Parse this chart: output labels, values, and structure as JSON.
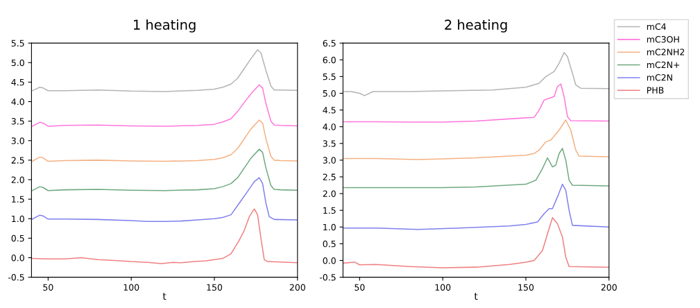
{
  "chart_data": [
    {
      "type": "line",
      "title": "1 heating",
      "xlabel": "t",
      "xlim": [
        40,
        200
      ],
      "xticks": [
        50,
        100,
        150,
        200
      ],
      "ylim": [
        -0.5,
        5.5
      ],
      "yticks": [
        -0.5,
        {
          "value": 0,
          "label": "0.0"
        },
        0.5,
        {
          "value": 1,
          "label": "1.0"
        },
        1.5,
        {
          "value": 2,
          "label": "2.0"
        },
        2.5,
        {
          "value": 3,
          "label": "3.0"
        },
        3.5,
        {
          "value": 4,
          "label": "4.0"
        },
        4.5,
        {
          "value": 5,
          "label": "5.0"
        },
        5.5
      ],
      "grid": false,
      "series": [
        {
          "color": "#b4b4b4",
          "x": [
            40,
            45,
            47,
            50,
            60,
            80,
            100,
            120,
            140,
            150,
            155,
            160,
            164,
            168,
            172,
            176,
            178,
            181,
            184,
            186,
            190,
            200
          ],
          "values": [
            4.27,
            4.37,
            4.35,
            4.28,
            4.28,
            4.3,
            4.27,
            4.26,
            4.29,
            4.32,
            4.37,
            4.45,
            4.6,
            4.85,
            5.1,
            5.33,
            5.25,
            4.8,
            4.4,
            4.3,
            4.3,
            4.29
          ]
        },
        {
          "color": "#ff77dd",
          "x": [
            40,
            45,
            47,
            50,
            60,
            80,
            100,
            120,
            140,
            150,
            155,
            160,
            164,
            168,
            172,
            177,
            179,
            181,
            184,
            186,
            190,
            200
          ],
          "values": [
            3.36,
            3.47,
            3.45,
            3.37,
            3.39,
            3.4,
            3.38,
            3.37,
            3.39,
            3.42,
            3.48,
            3.56,
            3.75,
            3.98,
            4.2,
            4.43,
            4.35,
            3.95,
            3.5,
            3.4,
            3.39,
            3.38
          ]
        },
        {
          "color": "#f4b183",
          "x": [
            40,
            45,
            47,
            50,
            60,
            80,
            100,
            120,
            140,
            150,
            155,
            160,
            164,
            168,
            172,
            177,
            179,
            181,
            184,
            186,
            190,
            200
          ],
          "values": [
            2.46,
            2.58,
            2.56,
            2.47,
            2.49,
            2.5,
            2.48,
            2.47,
            2.49,
            2.52,
            2.56,
            2.64,
            2.8,
            3.05,
            3.3,
            3.53,
            3.45,
            3.05,
            2.6,
            2.5,
            2.49,
            2.48
          ]
        },
        {
          "color": "#70a980",
          "x": [
            40,
            45,
            47,
            50,
            60,
            80,
            100,
            120,
            140,
            150,
            155,
            160,
            164,
            168,
            172,
            177,
            179,
            181,
            184,
            186,
            190,
            200
          ],
          "values": [
            1.71,
            1.82,
            1.8,
            1.72,
            1.74,
            1.75,
            1.73,
            1.72,
            1.74,
            1.77,
            1.82,
            1.9,
            2.05,
            2.3,
            2.55,
            2.78,
            2.7,
            2.3,
            1.85,
            1.75,
            1.74,
            1.73
          ]
        },
        {
          "color": "#8080ee",
          "x": [
            40,
            45,
            47,
            50,
            60,
            80,
            100,
            110,
            120,
            130,
            140,
            150,
            155,
            160,
            165,
            170,
            174,
            177,
            179,
            181,
            183,
            186,
            200
          ],
          "values": [
            0.98,
            1.09,
            1.07,
            0.99,
            0.99,
            0.98,
            0.95,
            0.93,
            0.93,
            0.94,
            0.97,
            1.0,
            1.03,
            1.1,
            1.4,
            1.7,
            1.95,
            2.05,
            1.9,
            1.4,
            1.05,
            0.98,
            0.97
          ]
        },
        {
          "color": "#f08080",
          "x": [
            40,
            50,
            60,
            70,
            80,
            90,
            100,
            110,
            118,
            125,
            130,
            138,
            145,
            150,
            155,
            160,
            165,
            168,
            171,
            174,
            176,
            178,
            180,
            182,
            190,
            200
          ],
          "values": [
            -0.02,
            -0.03,
            -0.03,
            0.0,
            -0.05,
            -0.07,
            -0.1,
            -0.12,
            -0.15,
            -0.12,
            -0.13,
            -0.1,
            -0.08,
            -0.05,
            -0.02,
            0.1,
            0.45,
            0.7,
            1.05,
            1.25,
            1.1,
            0.5,
            -0.05,
            -0.1,
            -0.11,
            -0.13
          ]
        }
      ]
    },
    {
      "type": "line",
      "title": "2 heating",
      "xlabel": "t",
      "xlim": [
        40,
        200
      ],
      "xticks": [
        50,
        100,
        150,
        200
      ],
      "ylim": [
        -0.5,
        6.5
      ],
      "yticks": [
        -0.5,
        {
          "value": 0,
          "label": "0.0"
        },
        0.5,
        {
          "value": 1,
          "label": "1.0"
        },
        1.5,
        {
          "value": 2,
          "label": "2.0"
        },
        2.5,
        {
          "value": 3,
          "label": "3.0"
        },
        3.5,
        {
          "value": 4,
          "label": "4.0"
        },
        4.5,
        {
          "value": 5,
          "label": "5.0"
        },
        5.5,
        {
          "value": 6,
          "label": "6.0"
        },
        6.5
      ],
      "grid": false,
      "legend": "right",
      "series": [
        {
          "name": "mC4",
          "color": "#b4b4b4",
          "x": [
            40,
            45,
            50,
            53,
            58,
            70,
            80,
            100,
            130,
            150,
            158,
            162,
            167,
            170,
            173,
            175,
            178,
            180,
            183,
            200
          ],
          "values": [
            5.05,
            5.05,
            5.0,
            4.93,
            5.05,
            5.05,
            5.05,
            5.07,
            5.1,
            5.18,
            5.3,
            5.5,
            5.65,
            5.9,
            6.22,
            6.1,
            5.6,
            5.25,
            5.15,
            5.14
          ]
        },
        {
          "name": "mC3OH",
          "color": "#ff77dd",
          "x": [
            40,
            60,
            80,
            100,
            120,
            145,
            155,
            158,
            161,
            164,
            167,
            169,
            171,
            173,
            175,
            177,
            200
          ],
          "values": [
            4.15,
            4.15,
            4.14,
            4.14,
            4.17,
            4.25,
            4.28,
            4.5,
            4.8,
            4.85,
            4.9,
            5.2,
            5.28,
            4.9,
            4.3,
            4.18,
            4.17
          ]
        },
        {
          "name": "mC2NH2",
          "color": "#f4b183",
          "x": [
            40,
            60,
            85,
            100,
            120,
            150,
            155,
            158,
            162,
            165,
            170,
            174,
            177,
            180,
            182,
            200
          ],
          "values": [
            3.05,
            3.05,
            3.02,
            3.04,
            3.07,
            3.15,
            3.2,
            3.3,
            3.55,
            3.6,
            3.9,
            4.2,
            3.9,
            3.3,
            3.12,
            3.1
          ]
        },
        {
          "name": "mC2N+",
          "color": "#70a980",
          "x": [
            40,
            60,
            80,
            100,
            120,
            150,
            156,
            160,
            163,
            166,
            168,
            170,
            172,
            174,
            176,
            178,
            200
          ],
          "values": [
            2.18,
            2.18,
            2.18,
            2.18,
            2.2,
            2.28,
            2.4,
            2.75,
            3.07,
            2.8,
            2.85,
            3.2,
            3.35,
            3.0,
            2.4,
            2.25,
            2.23
          ]
        },
        {
          "name": "mC2N",
          "color": "#8080ee",
          "x": [
            40,
            60,
            85,
            110,
            140,
            150,
            157,
            161,
            164,
            166,
            169,
            172,
            174,
            176,
            178,
            200
          ],
          "values": [
            0.97,
            0.97,
            0.93,
            0.97,
            1.03,
            1.08,
            1.15,
            1.4,
            1.55,
            1.55,
            1.9,
            2.28,
            2.1,
            1.5,
            1.05,
            1.0
          ]
        },
        {
          "name": "PHB",
          "color": "#f08080",
          "x": [
            40,
            47,
            50,
            60,
            80,
            100,
            120,
            140,
            150,
            155,
            160,
            163,
            166,
            169,
            172,
            174,
            176,
            200
          ],
          "values": [
            -0.08,
            -0.05,
            -0.13,
            -0.12,
            -0.18,
            -0.22,
            -0.2,
            -0.12,
            -0.05,
            0.0,
            0.3,
            0.8,
            1.28,
            1.1,
            0.7,
            0.1,
            -0.18,
            -0.2
          ]
        }
      ]
    }
  ]
}
